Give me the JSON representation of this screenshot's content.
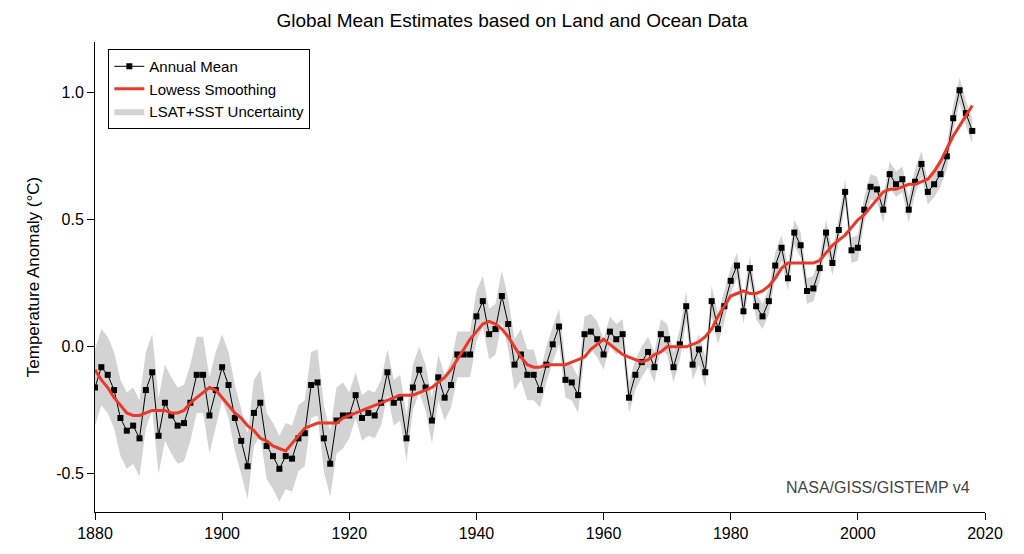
{
  "chart_data": {
    "type": "line",
    "title": "Global Mean Estimates based on Land and Ocean Data",
    "y_label": "Temperature Anomaly (°C)",
    "annotation": "NASA/GISS/GISTEMP v4",
    "x": [
      1880,
      1881,
      1882,
      1883,
      1884,
      1885,
      1886,
      1887,
      1888,
      1889,
      1890,
      1891,
      1892,
      1893,
      1894,
      1895,
      1896,
      1897,
      1898,
      1899,
      1900,
      1901,
      1902,
      1903,
      1904,
      1905,
      1906,
      1907,
      1908,
      1909,
      1910,
      1911,
      1912,
      1913,
      1914,
      1915,
      1916,
      1917,
      1918,
      1919,
      1920,
      1921,
      1922,
      1923,
      1924,
      1925,
      1926,
      1927,
      1928,
      1929,
      1930,
      1931,
      1932,
      1933,
      1934,
      1935,
      1936,
      1937,
      1938,
      1939,
      1940,
      1941,
      1942,
      1943,
      1944,
      1945,
      1946,
      1947,
      1948,
      1949,
      1950,
      1951,
      1952,
      1953,
      1954,
      1955,
      1956,
      1957,
      1958,
      1959,
      1960,
      1961,
      1962,
      1963,
      1964,
      1965,
      1966,
      1967,
      1968,
      1969,
      1970,
      1971,
      1972,
      1973,
      1974,
      1975,
      1976,
      1977,
      1978,
      1979,
      1980,
      1981,
      1982,
      1983,
      1984,
      1985,
      1986,
      1987,
      1988,
      1989,
      1990,
      1991,
      1992,
      1993,
      1994,
      1995,
      1996,
      1997,
      1998,
      1999,
      2000,
      2001,
      2002,
      2003,
      2004,
      2005,
      2006,
      2007,
      2008,
      2009,
      2010,
      2011,
      2012,
      2013,
      2014,
      2015,
      2016,
      2017,
      2018
    ],
    "series": [
      {
        "name": "LSAT+SST Uncertainty",
        "type": "band",
        "color": "#d3d3d3",
        "uncertainty": [
          0.15,
          0.15,
          0.15,
          0.15,
          0.15,
          0.15,
          0.15,
          0.15,
          0.15,
          0.15,
          0.15,
          0.15,
          0.15,
          0.15,
          0.15,
          0.15,
          0.15,
          0.15,
          0.15,
          0.15,
          0.13,
          0.13,
          0.13,
          0.13,
          0.13,
          0.13,
          0.13,
          0.13,
          0.13,
          0.13,
          0.13,
          0.13,
          0.13,
          0.13,
          0.13,
          0.13,
          0.13,
          0.13,
          0.13,
          0.13,
          0.09,
          0.09,
          0.09,
          0.09,
          0.09,
          0.09,
          0.09,
          0.09,
          0.09,
          0.09,
          0.09,
          0.09,
          0.09,
          0.09,
          0.09,
          0.09,
          0.09,
          0.09,
          0.09,
          0.09,
          0.1,
          0.1,
          0.1,
          0.1,
          0.1,
          0.1,
          0.1,
          0.1,
          0.1,
          0.1,
          0.07,
          0.07,
          0.07,
          0.07,
          0.07,
          0.07,
          0.07,
          0.07,
          0.07,
          0.07,
          0.06,
          0.06,
          0.06,
          0.06,
          0.06,
          0.06,
          0.06,
          0.06,
          0.06,
          0.06,
          0.06,
          0.06,
          0.06,
          0.06,
          0.06,
          0.06,
          0.06,
          0.06,
          0.06,
          0.06,
          0.05,
          0.05,
          0.05,
          0.05,
          0.05,
          0.05,
          0.05,
          0.05,
          0.05,
          0.05,
          0.05,
          0.05,
          0.05,
          0.05,
          0.05,
          0.05,
          0.05,
          0.05,
          0.05,
          0.05,
          0.05,
          0.05,
          0.05,
          0.05,
          0.05,
          0.05,
          0.05,
          0.05,
          0.05,
          0.05,
          0.05,
          0.05,
          0.05,
          0.05,
          0.05,
          0.05,
          0.05,
          0.05,
          0.05
        ]
      },
      {
        "name": "Annual Mean",
        "type": "line",
        "color": "#000000",
        "marker": "square",
        "values": [
          -0.16,
          -0.08,
          -0.11,
          -0.17,
          -0.28,
          -0.33,
          -0.31,
          -0.36,
          -0.17,
          -0.1,
          -0.35,
          -0.22,
          -0.27,
          -0.31,
          -0.3,
          -0.22,
          -0.11,
          -0.11,
          -0.27,
          -0.17,
          -0.08,
          -0.15,
          -0.28,
          -0.37,
          -0.47,
          -0.26,
          -0.22,
          -0.39,
          -0.43,
          -0.48,
          -0.43,
          -0.44,
          -0.36,
          -0.34,
          -0.15,
          -0.14,
          -0.36,
          -0.46,
          -0.29,
          -0.27,
          -0.27,
          -0.19,
          -0.28,
          -0.26,
          -0.27,
          -0.22,
          -0.1,
          -0.22,
          -0.2,
          -0.36,
          -0.16,
          -0.09,
          -0.16,
          -0.29,
          -0.12,
          -0.2,
          -0.15,
          -0.03,
          -0.03,
          -0.03,
          0.12,
          0.18,
          0.05,
          0.07,
          0.2,
          0.09,
          -0.07,
          -0.03,
          -0.11,
          -0.11,
          -0.17,
          -0.07,
          0.01,
          0.08,
          -0.13,
          -0.14,
          -0.19,
          0.05,
          0.06,
          0.03,
          -0.03,
          0.06,
          0.03,
          0.05,
          -0.2,
          -0.11,
          -0.06,
          -0.02,
          -0.08,
          0.05,
          0.03,
          -0.08,
          0.01,
          0.16,
          -0.07,
          -0.01,
          -0.1,
          0.18,
          0.07,
          0.16,
          0.26,
          0.32,
          0.14,
          0.31,
          0.16,
          0.12,
          0.18,
          0.32,
          0.39,
          0.27,
          0.45,
          0.4,
          0.22,
          0.23,
          0.31,
          0.45,
          0.33,
          0.46,
          0.61,
          0.38,
          0.39,
          0.54,
          0.63,
          0.62,
          0.54,
          0.68,
          0.64,
          0.66,
          0.54,
          0.65,
          0.72,
          0.61,
          0.64,
          0.68,
          0.75,
          0.9,
          1.01,
          0.92,
          0.85
        ]
      },
      {
        "name": "Lowess Smoothing",
        "type": "line",
        "color": "#e8392b",
        "values": [
          -0.09,
          -0.13,
          -0.16,
          -0.2,
          -0.23,
          -0.26,
          -0.27,
          -0.27,
          -0.26,
          -0.25,
          -0.25,
          -0.25,
          -0.26,
          -0.26,
          -0.25,
          -0.22,
          -0.2,
          -0.18,
          -0.16,
          -0.17,
          -0.2,
          -0.23,
          -0.26,
          -0.28,
          -0.31,
          -0.33,
          -0.36,
          -0.37,
          -0.39,
          -0.4,
          -0.41,
          -0.38,
          -0.35,
          -0.32,
          -0.31,
          -0.3,
          -0.3,
          -0.3,
          -0.3,
          -0.28,
          -0.27,
          -0.26,
          -0.25,
          -0.24,
          -0.23,
          -0.22,
          -0.21,
          -0.2,
          -0.19,
          -0.19,
          -0.19,
          -0.18,
          -0.17,
          -0.16,
          -0.14,
          -0.12,
          -0.09,
          -0.05,
          -0.01,
          0.03,
          0.06,
          0.09,
          0.1,
          0.09,
          0.07,
          0.04,
          0,
          -0.04,
          -0.07,
          -0.08,
          -0.08,
          -0.07,
          -0.07,
          -0.07,
          -0.07,
          -0.06,
          -0.05,
          -0.04,
          -0.01,
          0.01,
          0.03,
          0.01,
          -0.01,
          -0.03,
          -0.04,
          -0.05,
          -0.06,
          -0.05,
          -0.03,
          -0.02,
          0,
          0,
          0,
          0,
          0.01,
          0.02,
          0.04,
          0.07,
          0.12,
          0.16,
          0.2,
          0.21,
          0.22,
          0.21,
          0.21,
          0.22,
          0.24,
          0.27,
          0.31,
          0.33,
          0.33,
          0.33,
          0.33,
          0.33,
          0.34,
          0.37,
          0.4,
          0.42,
          0.44,
          0.47,
          0.5,
          0.52,
          0.55,
          0.58,
          0.61,
          0.62,
          0.62,
          0.63,
          0.64,
          0.64,
          0.65,
          0.66,
          0.69,
          0.73,
          0.78,
          0.83,
          0.87,
          0.91,
          0.95
        ]
      }
    ],
    "xlim": [
      1880,
      2020
    ],
    "xticks": [
      1880,
      1900,
      1920,
      1940,
      1960,
      1980,
      2000,
      2020
    ],
    "ylim": [
      -0.65,
      1.2
    ],
    "yticks": [
      -0.5,
      {
        "value": 0,
        "label": "0.0"
      },
      0.5,
      {
        "value": 1,
        "label": "1.0"
      }
    ],
    "grid": false,
    "legend": "upper left"
  }
}
